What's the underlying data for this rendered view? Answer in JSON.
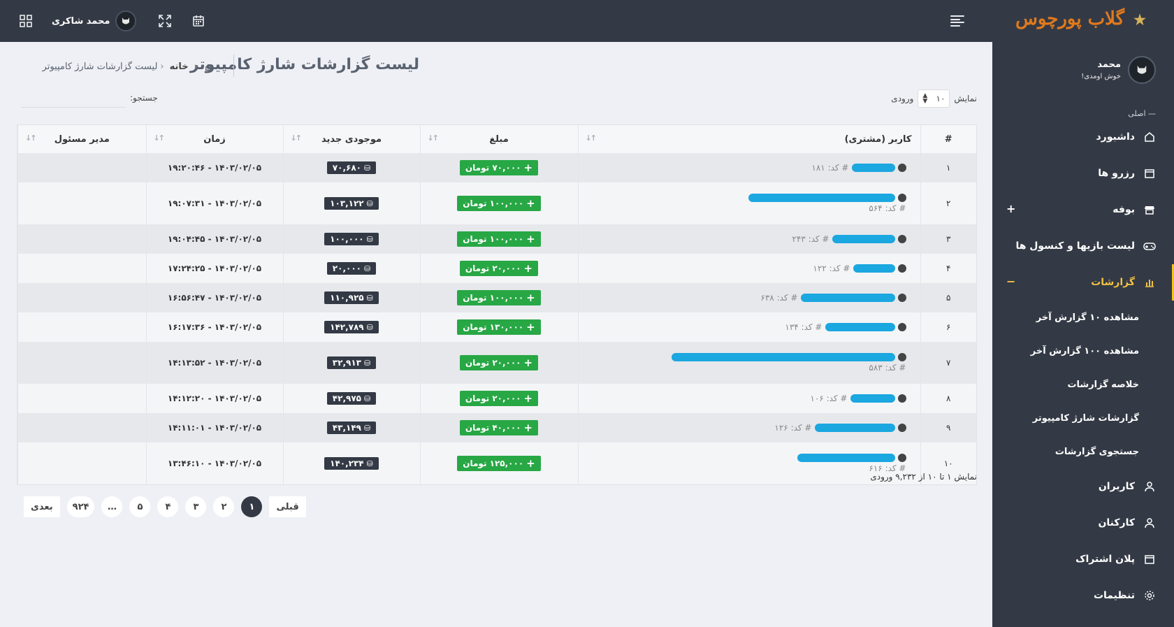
{
  "brand": {
    "logo_text": "گلاب پورچوس"
  },
  "topbar": {
    "user_name": "محمد شاکری"
  },
  "sidebar": {
    "profile_name": "محمد",
    "welcome": "خوش اومدی!",
    "section_title": "— اصلی",
    "items": [
      {
        "label": "داشبورد",
        "icon": "home-icon"
      },
      {
        "label": "رزرو ها",
        "icon": "calendar-icon"
      },
      {
        "label": "بوفه",
        "icon": "store-icon",
        "sign": "+"
      },
      {
        "label": "لیست بازیها و کنسول ها",
        "icon": "gamepad-icon"
      },
      {
        "label": "گزارشات",
        "icon": "chart-icon",
        "sign": "−",
        "active": true
      }
    ],
    "sub_items": [
      "مشاهده ۱۰ گزارش آخر",
      "مشاهده ۱۰۰ گزارش آخر",
      "خلاصه گزارشات",
      "گزارشات شارژ کامپیوتر",
      "جستجوی گزارشات"
    ],
    "items_after": [
      {
        "label": "کاربران",
        "icon": "user-icon"
      },
      {
        "label": "کارکنان",
        "icon": "user-icon"
      },
      {
        "label": "پلان اشتراک",
        "icon": "calendar-icon"
      },
      {
        "label": "تنظیمات",
        "icon": "gear-icon"
      }
    ]
  },
  "page": {
    "title": "لیست گزارشات شارژ کامپیوتر",
    "breadcrumb_home": "خانه",
    "breadcrumb_current": "لیست گزارشات شارژ کامپیوتر"
  },
  "controls": {
    "show_label": "نمایش",
    "entries_value": "۱۰",
    "entries_label": "ورودی",
    "search_label": "جستجو:",
    "search_value": ""
  },
  "table": {
    "headers": [
      "#",
      "کاربر (مشتری)",
      "مبلغ",
      "موجودی جدید",
      "زمان",
      "مدیر مسئول"
    ],
    "rows": [
      {
        "idx": "۱",
        "code": "# کد: ۱۸۱",
        "two_line": false,
        "scribble": 62,
        "amount": "۷۰,۰۰۰ تومان",
        "balance": "۷۰,۶۸۰",
        "time": "۱۴۰۳/۰۲/۰۵ - ۱۹:۲۰:۴۶",
        "h": 42
      },
      {
        "idx": "۲",
        "code": "# کد: ۵۶۴",
        "two_line": true,
        "scribble": 210,
        "amount": "۱۰۰,۰۰۰ تومان",
        "balance": "۱۰۳,۱۲۲",
        "time": "۱۴۰۳/۰۲/۰۵ - ۱۹:۰۷:۳۱",
        "h": 60
      },
      {
        "idx": "۳",
        "code": "# کد: ۲۴۳",
        "two_line": false,
        "scribble": 90,
        "amount": "۱۰۰,۰۰۰ تومان",
        "balance": "۱۰۰,۰۰۰",
        "time": "۱۴۰۳/۰۲/۰۵ - ۱۹:۰۴:۴۵",
        "h": 42
      },
      {
        "idx": "۴",
        "code": "# کد: ۱۲۲",
        "two_line": false,
        "scribble": 60,
        "amount": "۲۰,۰۰۰ تومان",
        "balance": "۲۰,۰۰۰",
        "time": "۱۴۰۳/۰۲/۰۵ - ۱۷:۲۴:۲۵",
        "h": 42
      },
      {
        "idx": "۵",
        "code": "# کد: ۶۳۸",
        "two_line": false,
        "scribble": 135,
        "amount": "۱۰۰,۰۰۰ تومان",
        "balance": "۱۱۰,۹۲۵",
        "time": "۱۴۰۳/۰۲/۰۵ - ۱۶:۵۶:۴۷",
        "h": 42
      },
      {
        "idx": "۶",
        "code": "# کد: ۱۳۴",
        "two_line": false,
        "scribble": 100,
        "amount": "۱۳۰,۰۰۰ تومان",
        "balance": "۱۴۲,۷۸۹",
        "time": "۱۴۰۳/۰۲/۰۵ - ۱۶:۱۷:۳۶",
        "h": 42
      },
      {
        "idx": "۷",
        "code": "# کد: ۵۸۳",
        "two_line": true,
        "scribble": 320,
        "amount": "۲۰,۰۰۰ تومان",
        "balance": "۳۲,۹۱۳",
        "time": "۱۴۰۳/۰۲/۰۵ - ۱۴:۱۳:۵۲",
        "h": 60
      },
      {
        "idx": "۸",
        "code": "# کد: ۱۰۶",
        "two_line": false,
        "scribble": 64,
        "amount": "۲۰,۰۰۰ تومان",
        "balance": "۴۲,۹۷۵",
        "time": "۱۴۰۳/۰۲/۰۵ - ۱۴:۱۲:۲۰",
        "h": 42
      },
      {
        "idx": "۹",
        "code": "# کد: ۱۲۶",
        "two_line": false,
        "scribble": 115,
        "amount": "۴۰,۰۰۰ تومان",
        "balance": "۴۳,۱۴۹",
        "time": "۱۴۰۳/۰۲/۰۵ - ۱۴:۱۱:۰۱",
        "h": 42
      },
      {
        "idx": "۱۰",
        "code": "# کد: ۶۱۶",
        "two_line": true,
        "scribble": 140,
        "amount": "۱۲۵,۰۰۰ تومان",
        "balance": "۱۴۰,۲۳۴",
        "time": "۱۴۰۳/۰۲/۰۵ - ۱۳:۴۶:۱۰",
        "h": 60
      }
    ]
  },
  "footer": {
    "info": "نمایش ۱ تا ۱۰ از ۹,۲۳۲ ورودی",
    "pagination": [
      "بعدی",
      "۹۲۴",
      "…",
      "۵",
      "۴",
      "۳",
      "۲",
      "۱",
      "قبلی"
    ],
    "active_page": "۱"
  },
  "colors": {
    "dark": "#343a45",
    "accent": "#f3c244",
    "green": "#28a745",
    "scribble": "#1ba7e0"
  }
}
